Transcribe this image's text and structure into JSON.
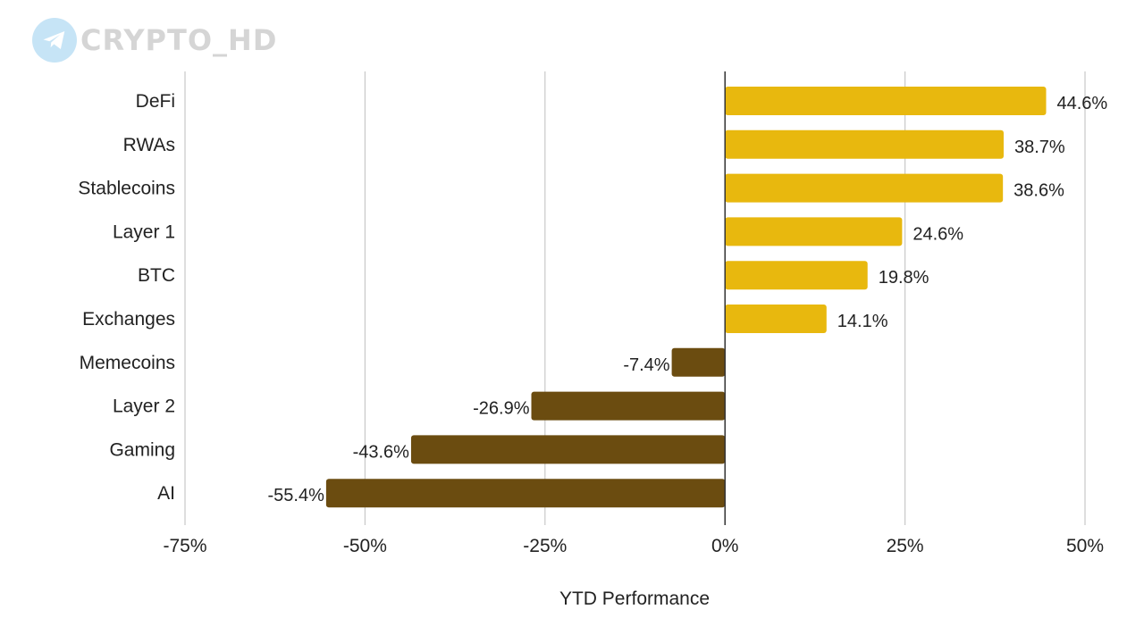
{
  "watermark": {
    "text": "CRYPTO_HD",
    "icon": "telegram-icon"
  },
  "chart_data": {
    "type": "bar",
    "orientation": "horizontal",
    "title": "",
    "xlabel": "YTD Performance",
    "ylabel": "",
    "xlim": [
      -75,
      50
    ],
    "xticks": [
      -75,
      -50,
      -25,
      0,
      25,
      50
    ],
    "xtick_labels": [
      "-75%",
      "-50%",
      "-25%",
      "0%",
      "25%",
      "50%"
    ],
    "grid": "vertical",
    "categories": [
      "DeFi",
      "RWAs",
      "Stablecoins",
      "Layer 1",
      "BTC",
      "Exchanges",
      "Memecoins",
      "Layer 2",
      "Gaming",
      "AI"
    ],
    "values": [
      44.6,
      38.7,
      38.6,
      24.6,
      19.8,
      14.1,
      -7.4,
      -26.9,
      -43.6,
      -55.4
    ],
    "value_labels": [
      "44.6%",
      "38.7%",
      "38.6%",
      "24.6%",
      "19.8%",
      "14.1%",
      "-7.4%",
      "-26.9%",
      "-43.6%",
      "-55.4%"
    ],
    "colors": {
      "positive": "#E8B80E",
      "negative": "#6B4C10",
      "grid": "#C8C8C8",
      "zero_line": "#333333"
    }
  }
}
